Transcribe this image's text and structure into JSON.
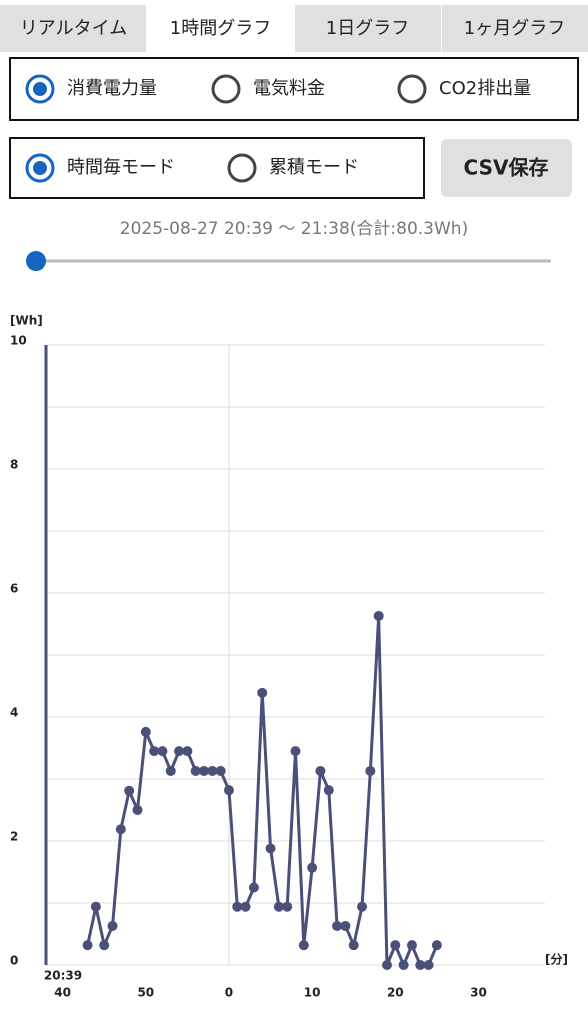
{
  "tabs": {
    "labels": [
      "リアルタイム",
      "1時間グラフ",
      "1日グラフ",
      "1ヶ月グラフ"
    ],
    "selected": 1
  },
  "unit_options": {
    "labels": [
      "消費電力量",
      "電気料金",
      "CO2排出量"
    ],
    "selected": 0
  },
  "mode_options": {
    "labels": [
      "時間毎モード",
      "累積モード"
    ],
    "selected": 0
  },
  "csv_button": "CSV保存",
  "range_text": "2025-08-27 20:39 〜 21:38(合計:80.3Wh)",
  "chart_data": {
    "type": "line",
    "y_label": "[Wh]",
    "x_label": "[分]",
    "x_start_label": "20:39",
    "color": "#4a5078",
    "x": [
      43,
      44,
      45,
      46,
      47,
      48,
      49,
      50,
      51,
      52,
      53,
      54,
      55,
      56,
      57,
      58,
      59,
      60,
      61,
      62,
      63,
      64,
      65,
      66,
      67,
      68,
      69,
      70,
      71,
      72,
      73,
      74,
      75,
      76,
      77,
      78,
      79,
      80,
      81,
      82,
      83,
      84,
      85
    ],
    "values": [
      0.32,
      0.94,
      0.32,
      0.63,
      2.19,
      2.81,
      2.5,
      3.76,
      3.45,
      3.45,
      3.13,
      3.45,
      3.45,
      3.13,
      3.13,
      3.13,
      3.13,
      2.82,
      0.94,
      0.94,
      1.25,
      4.39,
      1.88,
      0.94,
      0.94,
      3.45,
      0.32,
      1.57,
      3.13,
      2.82,
      0.63,
      0.63,
      0.32,
      0.94,
      3.13,
      5.63,
      0,
      0.32,
      0,
      0.32,
      0,
      0,
      0.32
    ],
    "xlim": [
      38,
      98
    ],
    "ylim": [
      0,
      10
    ],
    "xticks": [
      40,
      50,
      {
        "value": 60,
        "label": "0"
      },
      {
        "value": 70,
        "label": "10"
      },
      {
        "value": 80,
        "label": "20"
      },
      {
        "value": 90,
        "label": "30"
      }
    ],
    "yticks": [
      0,
      2,
      4,
      6,
      8,
      10
    ],
    "minor_yticks": [
      1,
      3,
      5,
      7,
      9
    ],
    "x_grid": [
      60
    ]
  }
}
